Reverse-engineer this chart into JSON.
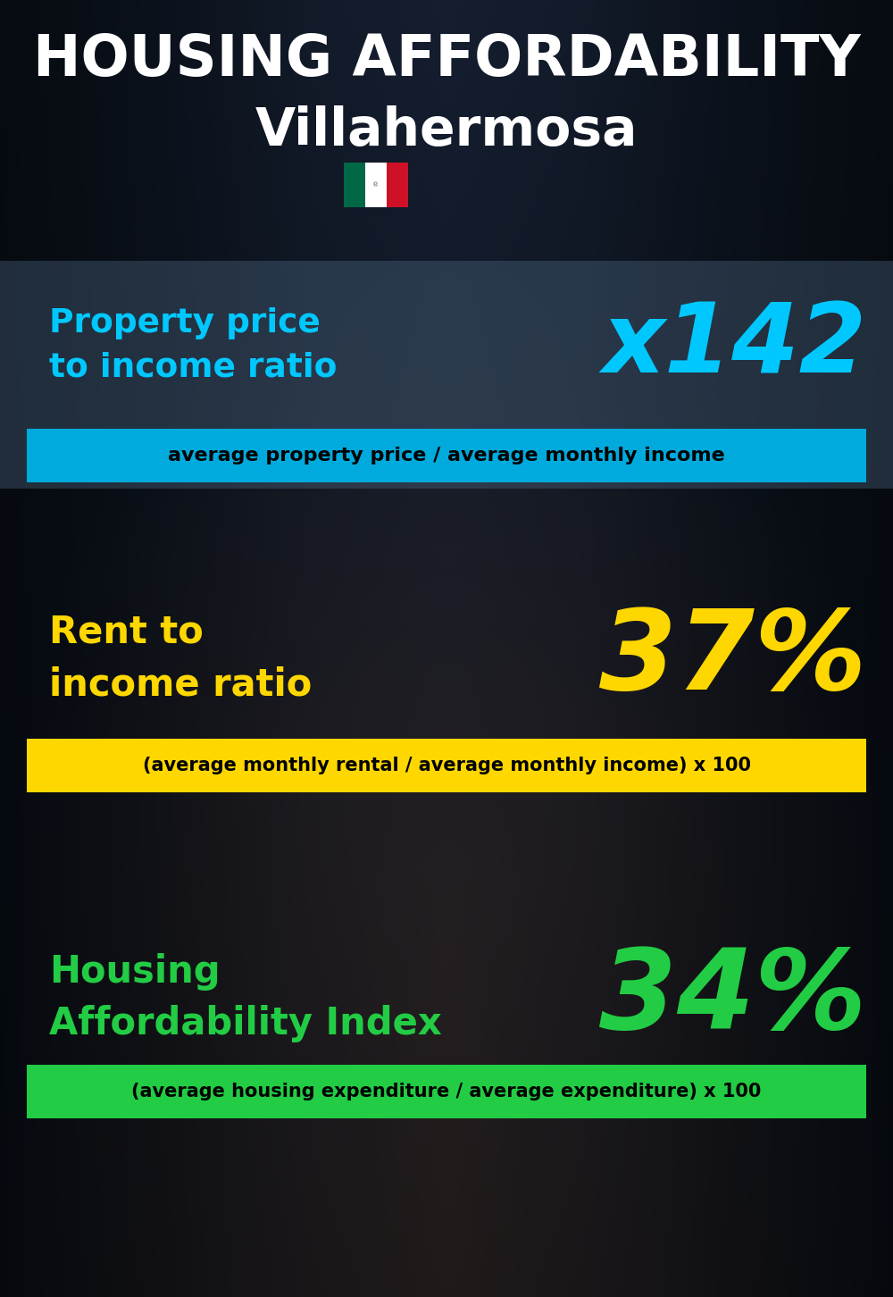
{
  "title_line1": "HOUSING AFFORDABILITY",
  "title_line2": "Villahermosa",
  "bg_color": "#080e18",
  "section1_label": "Property price\nto income ratio",
  "section1_value": "x142",
  "section1_label_color": "#00c8ff",
  "section1_value_color": "#00c8ff",
  "section1_formula": "average property price / average monthly income",
  "section1_formula_bg": "#00aadd",
  "section1_formula_color": "#000000",
  "section2_label": "Rent to\nincome ratio",
  "section2_value": "37%",
  "section2_label_color": "#ffd700",
  "section2_value_color": "#ffd700",
  "section2_formula": "(average monthly rental / average monthly income) x 100",
  "section2_formula_bg": "#ffd700",
  "section2_formula_color": "#000000",
  "section3_label": "Housing\nAffordability Index",
  "section3_value": "34%",
  "section3_label_color": "#22cc44",
  "section3_value_color": "#22cc44",
  "section3_formula": "(average housing expenditure / average expenditure) x 100",
  "section3_formula_bg": "#22cc44",
  "section3_formula_color": "#000000",
  "flag_green": "#006847",
  "flag_white": "#ffffff",
  "flag_red": "#CE1126"
}
